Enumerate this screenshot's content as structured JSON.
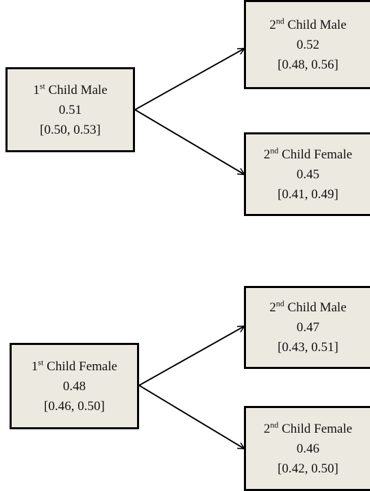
{
  "trees": [
    {
      "root": {
        "ordinal": "1",
        "suffix": "st",
        "label": "Child Male",
        "value": "0.51",
        "interval": "[0.50, 0.53]"
      },
      "children": [
        {
          "ordinal": "2",
          "suffix": "nd",
          "label": "Child Male",
          "value": "0.52",
          "interval": "[0.48, 0.56]"
        },
        {
          "ordinal": "2",
          "suffix": "nd",
          "label": "Child Female",
          "value": "0.45",
          "interval": "[0.41, 0.49]"
        }
      ]
    },
    {
      "root": {
        "ordinal": "1",
        "suffix": "st",
        "label": "Child Female",
        "value": "0.48",
        "interval": "[0.46, 0.50]"
      },
      "children": [
        {
          "ordinal": "2",
          "suffix": "nd",
          "label": "Child Male",
          "value": "0.47",
          "interval": "[0.43, 0.51]"
        },
        {
          "ordinal": "2",
          "suffix": "nd",
          "label": "Child Female",
          "value": "0.46",
          "interval": "[0.42, 0.50]"
        }
      ]
    }
  ]
}
